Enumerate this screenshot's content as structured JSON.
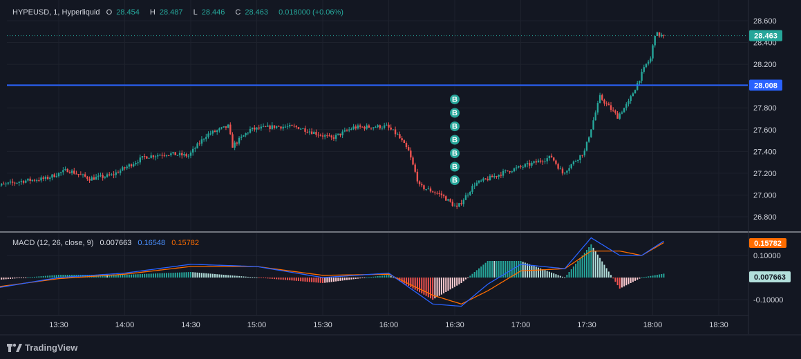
{
  "symbol": {
    "name": "HYPEUSD, 1, Hyperliquid",
    "open_label": "O",
    "open": "28.454",
    "high_label": "H",
    "high": "28.487",
    "low_label": "L",
    "low": "28.446",
    "close_label": "C",
    "close": "28.463",
    "change": "0.018000 (+0.06%)"
  },
  "price_scale": {
    "ticks": [
      "28.600",
      "28.400",
      "28.200",
      "28.000",
      "27.800",
      "27.600",
      "27.400",
      "27.200",
      "27.000",
      "26.800"
    ],
    "current_price_tag": "28.463",
    "line_price_tag": "28.008"
  },
  "time_axis": {
    "ticks": [
      "13:30",
      "14:00",
      "14:30",
      "15:00",
      "15:30",
      "16:00",
      "16:30",
      "17:00",
      "17:30",
      "18:00",
      "18:30"
    ]
  },
  "buy_marker_label": "B",
  "macd": {
    "title": "MACD (12, 26, close, 9)",
    "hist_value": "0.007663",
    "macd_value": "0.16548",
    "signal_value": "0.15782",
    "ticks": [
      "0.10000",
      "-0.10000"
    ],
    "tags": {
      "signal": "0.15782",
      "hist": "0.007663"
    }
  },
  "watermark": "TradingView",
  "colors": {
    "background": "#131722",
    "up": "#26a69a",
    "down": "#ef5350",
    "horizontal_line": "#2962ff",
    "macd_line": "#2962ff",
    "signal_line": "#ff6d00"
  },
  "chart_data": {
    "type": "candlestick",
    "x_start": "13:00",
    "x_end": "18:05",
    "interval": "1m",
    "ylim": [
      26.72,
      28.65
    ],
    "horizontal_line": 28.008,
    "buy_markers_time": "16:30",
    "buy_markers_count": 7,
    "anchors": [
      [
        "13:00",
        27.07
      ],
      [
        "13:15",
        27.13
      ],
      [
        "13:25",
        27.15
      ],
      [
        "13:35",
        27.23
      ],
      [
        "13:45",
        27.15
      ],
      [
        "13:55",
        27.18
      ],
      [
        "14:10",
        27.35
      ],
      [
        "14:20",
        27.38
      ],
      [
        "14:30",
        27.36
      ],
      [
        "14:38",
        27.55
      ],
      [
        "14:48",
        27.63
      ],
      [
        "14:50",
        27.45
      ],
      [
        "14:58",
        27.6
      ],
      [
        "15:10",
        27.63
      ],
      [
        "15:20",
        27.62
      ],
      [
        "15:35",
        27.52
      ],
      [
        "15:45",
        27.62
      ],
      [
        "16:00",
        27.63
      ],
      [
        "16:05",
        27.55
      ],
      [
        "16:10",
        27.4
      ],
      [
        "16:15",
        27.08
      ],
      [
        "16:25",
        27.0
      ],
      [
        "16:32",
        26.88
      ],
      [
        "16:40",
        27.1
      ],
      [
        "16:55",
        27.22
      ],
      [
        "17:05",
        27.28
      ],
      [
        "17:15",
        27.35
      ],
      [
        "17:20",
        27.2
      ],
      [
        "17:30",
        27.4
      ],
      [
        "17:37",
        27.9
      ],
      [
        "17:45",
        27.72
      ],
      [
        "17:50",
        27.85
      ],
      [
        "17:58",
        28.2
      ],
      [
        "18:00",
        28.25
      ],
      [
        "18:02",
        28.48
      ],
      [
        "18:05",
        28.463
      ]
    ],
    "macd_anchors": [
      [
        "13:00",
        -0.05
      ],
      [
        "13:30",
        0.0
      ],
      [
        "14:00",
        0.02
      ],
      [
        "14:30",
        0.06
      ],
      [
        "15:00",
        0.05
      ],
      [
        "15:30",
        0.0
      ],
      [
        "16:00",
        0.02
      ],
      [
        "16:20",
        -0.12
      ],
      [
        "16:33",
        -0.13
      ],
      [
        "16:45",
        -0.03
      ],
      [
        "17:00",
        0.06
      ],
      [
        "17:20",
        0.04
      ],
      [
        "17:32",
        0.18
      ],
      [
        "17:45",
        0.1
      ],
      [
        "17:55",
        0.1
      ],
      [
        "18:05",
        0.165
      ]
    ],
    "signal_anchors": [
      [
        "13:00",
        -0.045
      ],
      [
        "13:30",
        -0.005
      ],
      [
        "14:00",
        0.015
      ],
      [
        "14:30",
        0.05
      ],
      [
        "15:00",
        0.05
      ],
      [
        "15:30",
        0.01
      ],
      [
        "16:00",
        0.015
      ],
      [
        "16:20",
        -0.08
      ],
      [
        "16:33",
        -0.12
      ],
      [
        "16:45",
        -0.06
      ],
      [
        "17:00",
        0.03
      ],
      [
        "17:20",
        0.04
      ],
      [
        "17:32",
        0.12
      ],
      [
        "17:45",
        0.12
      ],
      [
        "17:55",
        0.1
      ],
      [
        "18:05",
        0.158
      ]
    ],
    "macd_ylim": [
      -0.15,
      0.21
    ]
  }
}
